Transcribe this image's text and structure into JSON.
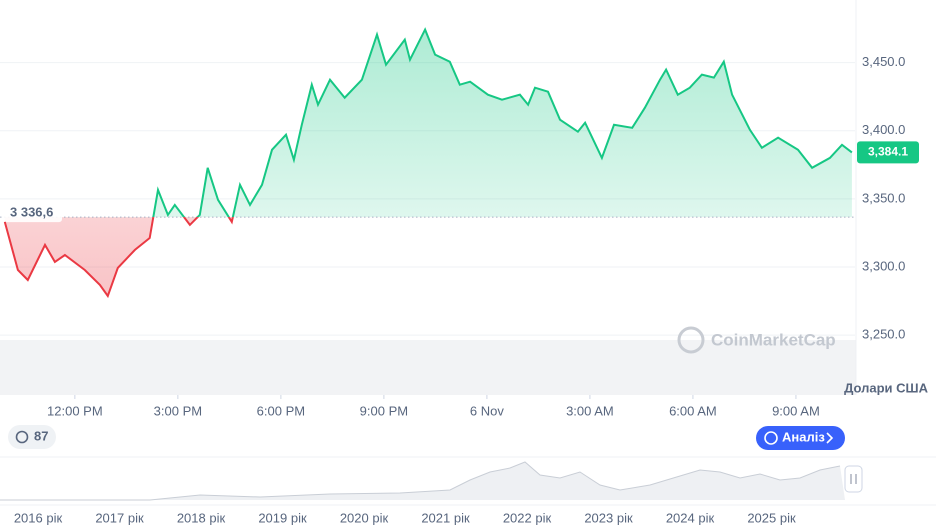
{
  "chart_data": {
    "type": "line",
    "x": [
      9.96,
      10.34,
      10.63,
      11.13,
      11.42,
      11.71,
      12.29,
      12.73,
      12.96,
      13.25,
      13.75,
      14.18,
      14.42,
      14.71,
      14.91,
      15.35,
      15.64,
      15.87,
      16.17,
      16.57,
      16.81,
      17.1,
      17.45,
      17.74,
      18.15,
      18.38,
      18.61,
      18.9,
      19.08,
      19.43,
      19.86,
      20.36,
      20.8,
      21.06,
      21.61,
      21.76,
      22.2,
      22.49,
      22.92,
      23.21,
      23.51,
      24.03,
      24.44,
      24.96,
      25.2,
      25.4,
      25.78,
      26.13,
      26.65,
      26.86,
      27.35,
      27.7,
      28.23,
      28.6,
      29.04,
      29.22,
      29.56,
      29.91,
      30.26,
      30.61,
      30.9,
      31.14,
      31.66,
      32.01,
      32.48,
      33.06,
      33.47,
      33.99,
      34.34,
      34.63
    ],
    "values": [
      3333.1,
      3297.8,
      3290.4,
      3316.2,
      3303.7,
      3308.8,
      3297.8,
      3286.8,
      3278.7,
      3299.3,
      3312.5,
      3321.3,
      3356.6,
      3338.2,
      3345.6,
      3330.9,
      3338.2,
      3372.8,
      3349.3,
      3333.1,
      3360.3,
      3345.6,
      3360.3,
      3386.0,
      3397.1,
      3378.7,
      3404.4,
      3433.8,
      3419.1,
      3437.5,
      3424.3,
      3437.5,
      3470.6,
      3448.5,
      3466.9,
      3452.2,
      3474.3,
      3455.9,
      3450.7,
      3433.8,
      3436.0,
      3426.5,
      3422.8,
      3426.5,
      3419.1,
      3431.6,
      3428.7,
      3408.1,
      3399.3,
      3405.9,
      3380.1,
      3404.4,
      3402.2,
      3416.9,
      3437.5,
      3444.9,
      3426.5,
      3431.6,
      3441.2,
      3439.0,
      3450.7,
      3426.5,
      3400.7,
      3387.5,
      3394.9,
      3386.0,
      3372.8,
      3380.1,
      3389.7,
      3384.1
    ],
    "current_label": "3,384.1",
    "baseline": {
      "value": 3336.6,
      "label": "3 336,6"
    },
    "up_color": "#16c784",
    "down_color": "#ea3943",
    "xlim": [
      9.82,
      34.72
    ],
    "xticks": [
      {
        "value": 12,
        "label": "12:00 PM"
      },
      {
        "value": 15,
        "label": "3:00 PM"
      },
      {
        "value": 18,
        "label": "6:00 PM"
      },
      {
        "value": 21,
        "label": "9:00 PM"
      },
      {
        "value": 24,
        "label": "6 Nov"
      },
      {
        "value": 27,
        "label": "3:00 AM"
      },
      {
        "value": 30,
        "label": "6:00 AM"
      },
      {
        "value": 33,
        "label": "9:00 AM"
      }
    ],
    "ylim": [
      3206,
      3496
    ],
    "yticks": [
      {
        "value": 3250,
        "label": "3,250.0"
      },
      {
        "value": 3300,
        "label": "3,300.0"
      },
      {
        "value": 3350,
        "label": "3,350.0"
      },
      {
        "value": 3400,
        "label": "3,400.0"
      },
      {
        "value": 3450,
        "label": "3,450.0"
      }
    ],
    "grid": true,
    "currency": "Долари США",
    "watermark": "CoinMarketCap"
  },
  "ui": {
    "badge": "87",
    "analysis_button": "Аналіз"
  },
  "navigator": {
    "years": [
      "2016 рік",
      "2017 рік",
      "2018 рік",
      "2019 рік",
      "2020 рік",
      "2021 рік",
      "2022 рік",
      "2023 рік",
      "2024 рік",
      "2025 рік"
    ]
  }
}
